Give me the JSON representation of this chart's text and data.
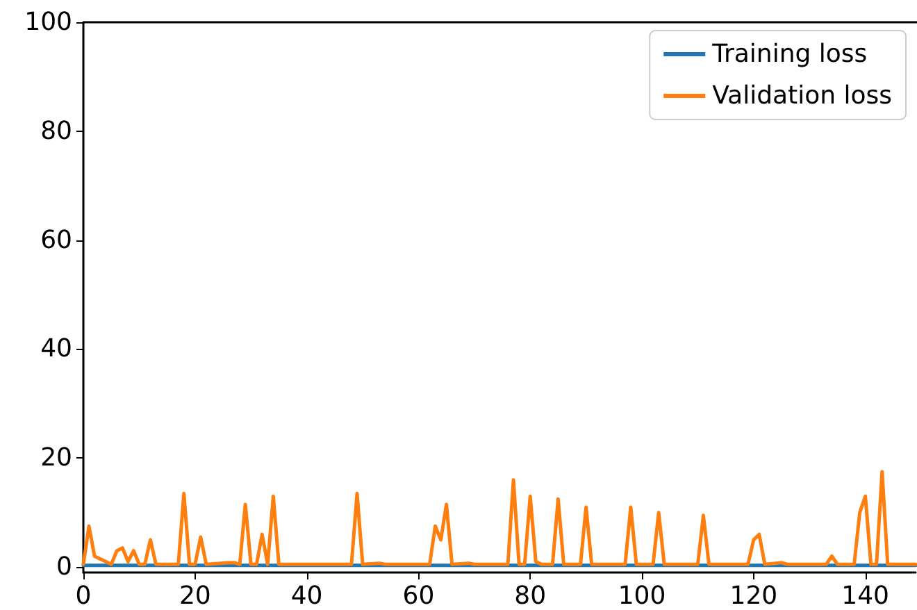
{
  "chart_data": {
    "type": "line",
    "xlim": [
      0,
      149
    ],
    "xticks": [
      0,
      20,
      40,
      60,
      80,
      100,
      120,
      140
    ],
    "ylim": [
      -1,
      100
    ],
    "yticks": [
      0,
      20,
      40,
      60,
      80,
      100
    ],
    "grid": false,
    "legend": "top right",
    "marker": "none",
    "line_style": "solid",
    "series": [
      {
        "name": "Training loss",
        "color": "#1f77b4",
        "x": [
          0,
          50,
          100,
          149
        ],
        "values": [
          0.3,
          0.3,
          0.3,
          0.3
        ]
      },
      {
        "name": "Validation loss",
        "color": "#ff7f0e",
        "x": [
          0,
          1,
          2,
          3,
          4,
          5,
          6,
          7,
          8,
          9,
          10,
          11,
          12,
          13,
          17,
          18,
          19,
          20,
          21,
          22,
          26,
          27,
          28,
          29,
          30,
          31,
          32,
          33,
          34,
          35,
          48,
          49,
          50,
          53,
          54,
          62,
          63,
          64,
          65,
          66,
          69,
          70,
          76,
          77,
          78,
          79,
          80,
          81,
          82,
          84,
          85,
          86,
          89,
          90,
          91,
          97,
          98,
          99,
          102,
          103,
          104,
          110,
          111,
          112,
          119,
          120,
          121,
          122,
          125,
          126,
          133,
          134,
          135,
          138,
          139,
          140,
          141,
          142,
          143,
          144,
          149
        ],
        "values": [
          0.5,
          7.5,
          2,
          1.5,
          1,
          0.5,
          3,
          3.5,
          1,
          3,
          0.5,
          0.5,
          5,
          0.5,
          0.5,
          13.5,
          0.5,
          0.5,
          5.5,
          0.5,
          0.8,
          0.8,
          0.5,
          11.5,
          0.5,
          0.5,
          6,
          0.5,
          13,
          0.5,
          0.5,
          13.5,
          0.5,
          0.7,
          0.5,
          0.5,
          7.5,
          5,
          11.5,
          0.5,
          0.7,
          0.5,
          0.5,
          16,
          0.5,
          0.5,
          13,
          1,
          0.5,
          0.5,
          12.5,
          0.5,
          0.5,
          11,
          0.5,
          0.5,
          11,
          0.5,
          0.5,
          10,
          0.5,
          0.5,
          9.5,
          0.5,
          0.5,
          5,
          6,
          0.5,
          0.8,
          0.5,
          0.5,
          2,
          0.5,
          0.5,
          10,
          13,
          0.5,
          0.5,
          17.5,
          0.5,
          0.5
        ]
      }
    ]
  }
}
